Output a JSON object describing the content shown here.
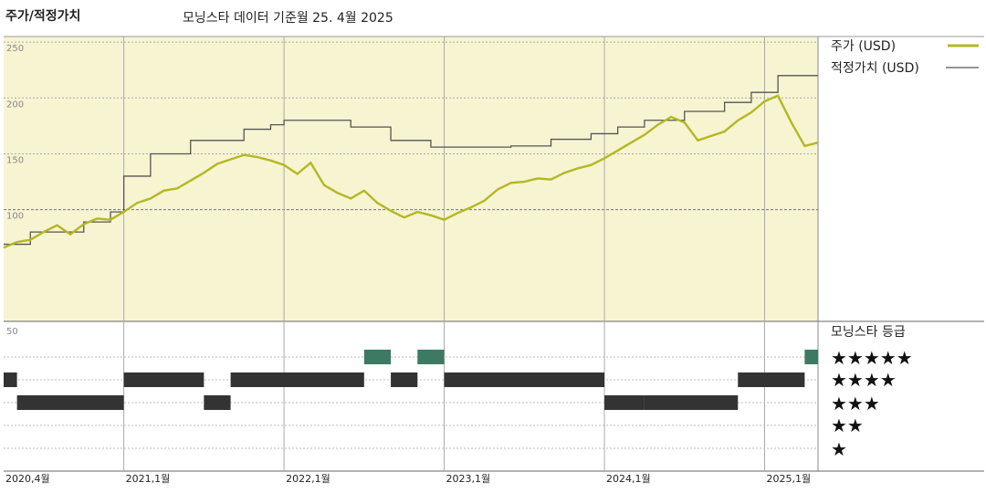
{
  "header": {
    "title": "주가/적정가치",
    "subtitle": "모닝스타 데이터 기준월 25. 4월 2025"
  },
  "colors": {
    "price": "#b3b822",
    "fair_value": "#555555",
    "panel_bg": "#f7f4d2",
    "bar_dark": "#333333",
    "bar_5star": "#3d7a63"
  },
  "legend": {
    "price_label": "주가 (USD)",
    "fair_label": "적정가치 (USD)",
    "rating_title": "모닝스타 등급",
    "stars": [
      "★★★★★",
      "★★★★",
      "★★★",
      "★★",
      "★"
    ]
  },
  "chart_data": {
    "type": "line",
    "x_ticks": [
      "2020,4월",
      "2021,1월",
      "2022,1월",
      "2023,1월",
      "2024,1월",
      "2025,1월"
    ],
    "y_ticks": [
      "50",
      "100",
      "150",
      "200",
      "250"
    ],
    "ylim": [
      0,
      255
    ],
    "series": [
      {
        "name": "주가 (USD)",
        "points": [
          [
            "2020-04",
            66
          ],
          [
            "2020-05",
            71
          ],
          [
            "2020-06",
            73
          ],
          [
            "2020-07",
            80
          ],
          [
            "2020-08",
            86
          ],
          [
            "2020-09",
            78
          ],
          [
            "2020-10",
            87
          ],
          [
            "2020-11",
            92
          ],
          [
            "2020-12",
            91
          ],
          [
            "2021-01",
            98
          ],
          [
            "2021-02",
            106
          ],
          [
            "2021-03",
            110
          ],
          [
            "2021-04",
            117
          ],
          [
            "2021-05",
            119
          ],
          [
            "2021-06",
            126
          ],
          [
            "2021-07",
            133
          ],
          [
            "2021-08",
            141
          ],
          [
            "2021-09",
            145
          ],
          [
            "2021-10",
            149
          ],
          [
            "2021-11",
            147
          ],
          [
            "2021-12",
            144
          ],
          [
            "2022-01",
            140
          ],
          [
            "2022-02",
            132
          ],
          [
            "2022-03",
            142
          ],
          [
            "2022-04",
            122
          ],
          [
            "2022-05",
            115
          ],
          [
            "2022-06",
            110
          ],
          [
            "2022-07",
            117
          ],
          [
            "2022-08",
            106
          ],
          [
            "2022-09",
            99
          ],
          [
            "2022-10",
            93
          ],
          [
            "2022-11",
            98
          ],
          [
            "2022-12",
            95
          ],
          [
            "2023-01",
            91
          ],
          [
            "2023-02",
            97
          ],
          [
            "2023-03",
            102
          ],
          [
            "2023-04",
            108
          ],
          [
            "2023-05",
            118
          ],
          [
            "2023-06",
            124
          ],
          [
            "2023-07",
            125
          ],
          [
            "2023-08",
            128
          ],
          [
            "2023-09",
            127
          ],
          [
            "2023-10",
            133
          ],
          [
            "2023-11",
            137
          ],
          [
            "2023-12",
            140
          ],
          [
            "2024-01",
            146
          ],
          [
            "2024-02",
            153
          ],
          [
            "2024-03",
            160
          ],
          [
            "2024-04",
            167
          ],
          [
            "2024-05",
            176
          ],
          [
            "2024-06",
            183
          ],
          [
            "2024-07",
            178
          ],
          [
            "2024-08",
            162
          ],
          [
            "2024-09",
            166
          ],
          [
            "2024-10",
            170
          ],
          [
            "2024-11",
            180
          ],
          [
            "2024-12",
            187
          ],
          [
            "2025-01",
            197
          ],
          [
            "2025-02",
            202
          ],
          [
            "2025-03",
            178
          ],
          [
            "2025-04",
            157
          ],
          [
            "2025-05",
            160
          ]
        ]
      },
      {
        "name": "적정가치 (USD)",
        "steps": [
          [
            "2020-04",
            69
          ],
          [
            "2020-06",
            80
          ],
          [
            "2020-10",
            89
          ],
          [
            "2020-12",
            98
          ],
          [
            "2021-01",
            130
          ],
          [
            "2021-03",
            150
          ],
          [
            "2021-06",
            162
          ],
          [
            "2021-10",
            172
          ],
          [
            "2021-12",
            176
          ],
          [
            "2022-01",
            180
          ],
          [
            "2022-06",
            174
          ],
          [
            "2022-09",
            162
          ],
          [
            "2022-12",
            156
          ],
          [
            "2023-06",
            157
          ],
          [
            "2023-09",
            163
          ],
          [
            "2023-12",
            168
          ],
          [
            "2024-02",
            174
          ],
          [
            "2024-04",
            180
          ],
          [
            "2024-07",
            188
          ],
          [
            "2024-10",
            196
          ],
          [
            "2024-12",
            205
          ],
          [
            "2025-02",
            220
          ],
          [
            "2025-05",
            220
          ]
        ]
      }
    ],
    "rating_strip": {
      "legend": "모닝스타 등급",
      "periods": [
        [
          "2020-04",
          "2020-05",
          4
        ],
        [
          "2020-05",
          "2021-01",
          3
        ],
        [
          "2021-01",
          "2021-07",
          4
        ],
        [
          "2021-07",
          "2021-09",
          3
        ],
        [
          "2021-09",
          "2022-07",
          4
        ],
        [
          "2022-07",
          "2022-09",
          5
        ],
        [
          "2022-09",
          "2022-11",
          4
        ],
        [
          "2022-11",
          "2023-01",
          5
        ],
        [
          "2023-01",
          "2024-01",
          4
        ],
        [
          "2024-01",
          "2024-04",
          3
        ],
        [
          "2024-04",
          "2024-11",
          3
        ],
        [
          "2024-11",
          "2025-04",
          4
        ],
        [
          "2025-04",
          "2025-05",
          5
        ]
      ]
    }
  }
}
